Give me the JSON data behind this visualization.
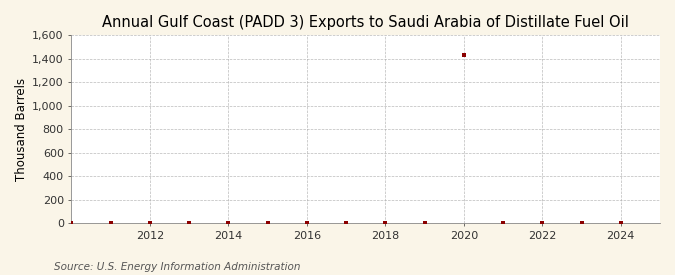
{
  "title": "Annual Gulf Coast (PADD 3) Exports to Saudi Arabia of Distillate Fuel Oil",
  "ylabel": "Thousand Barrels",
  "source": "Source: U.S. Energy Information Administration",
  "background_color": "#faf5e8",
  "plot_background_color": "#ffffff",
  "marker_color": "#8b0000",
  "grid_color": "#aaaaaa",
  "years": [
    2010,
    2011,
    2012,
    2013,
    2014,
    2015,
    2016,
    2017,
    2018,
    2019,
    2020,
    2021,
    2022,
    2023,
    2024
  ],
  "values": [
    0,
    0,
    3,
    3,
    0,
    2,
    0,
    2,
    0,
    0,
    1432,
    0,
    0,
    5,
    5
  ],
  "ylim": [
    0,
    1600
  ],
  "yticks": [
    0,
    200,
    400,
    600,
    800,
    1000,
    1200,
    1400,
    1600
  ],
  "xlim": [
    2010.0,
    2025.0
  ],
  "xticks": [
    2012,
    2014,
    2016,
    2018,
    2020,
    2022,
    2024
  ],
  "title_fontsize": 10.5,
  "label_fontsize": 8.5,
  "tick_fontsize": 8,
  "source_fontsize": 7.5
}
